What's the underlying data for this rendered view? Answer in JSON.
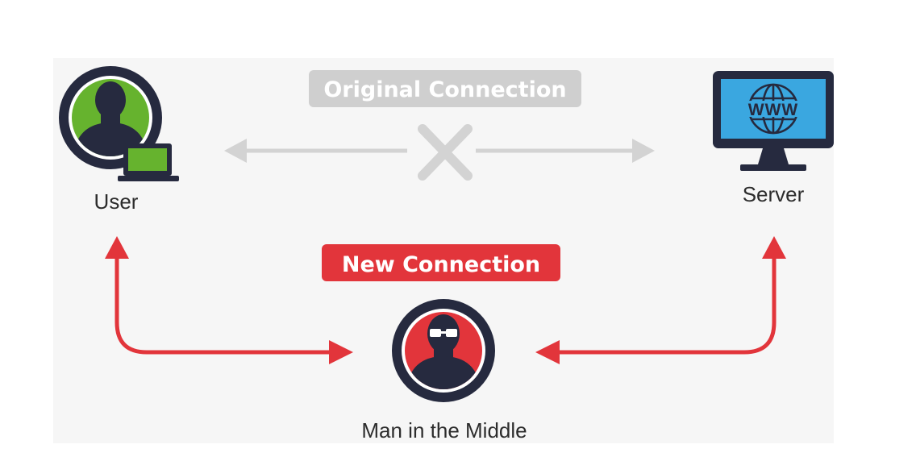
{
  "diagram": {
    "nodes": {
      "user": {
        "label": "User"
      },
      "server": {
        "label": "Server",
        "screen_text": "WWW"
      },
      "attacker": {
        "label": "Man in the Middle"
      }
    },
    "badges": {
      "original": {
        "label": "Original Connection"
      },
      "new": {
        "label": "New Connection"
      }
    }
  },
  "colors": {
    "panel": "#f6f6f6",
    "grey_badge": "#cfcfcf",
    "grey_arrow": "#d3d3d3",
    "red": "#e2353b",
    "red_dark": "#d42f35",
    "navy": "#262a3f",
    "green": "#66b32e",
    "screen_blue": "#3aa7e0",
    "text": "#2c2c2c"
  }
}
